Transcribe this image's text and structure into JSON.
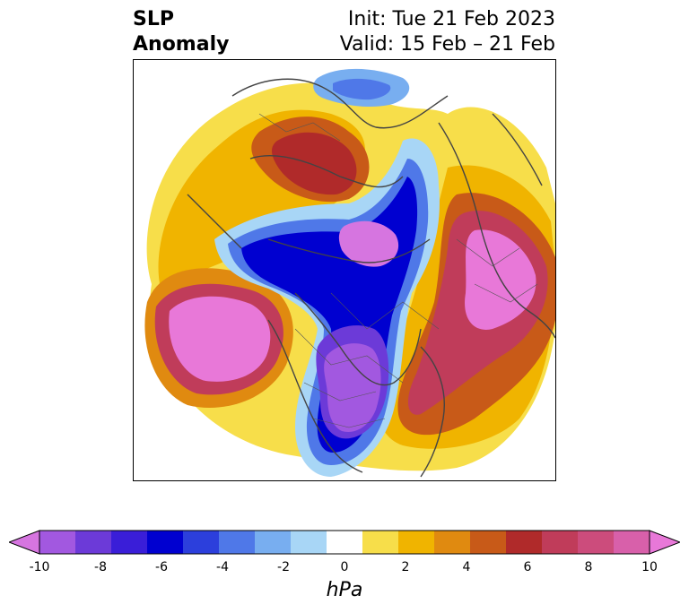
{
  "title": {
    "variable_line1": "SLP",
    "variable_line2": "Anomaly",
    "init": "Init: Tue 21 Feb 2023",
    "valid": "Valid: 15 Feb – 21 Feb"
  },
  "colorbar": {
    "label": "hPa",
    "tick_labels": [
      "-10",
      "-8",
      "-6",
      "-4",
      "-2",
      "0",
      "2",
      "4",
      "6",
      "8",
      "10"
    ],
    "levels": [
      -10,
      -9,
      -8,
      -7,
      -6,
      -5,
      -4,
      -3,
      -2,
      -1,
      1,
      2,
      3,
      4,
      5,
      6,
      7,
      8,
      9,
      10
    ],
    "colors": [
      "#d675e0",
      "#a258e0",
      "#6c3ad8",
      "#3a1ed8",
      "#0000d0",
      "#2c3fdc",
      "#4f78e8",
      "#78aef0",
      "#a8d6f6",
      "#ffffff",
      "#f7de4a",
      "#f0b400",
      "#e08a10",
      "#c85a18",
      "#b02a2a",
      "#c03c5a",
      "#cc4c7c",
      "#d860aa",
      "#e878d8"
    ],
    "extend": "both"
  },
  "map": {
    "projection": "north polar stereographic",
    "field": "sea level pressure anomaly",
    "region": "Northern Hemisphere"
  }
}
